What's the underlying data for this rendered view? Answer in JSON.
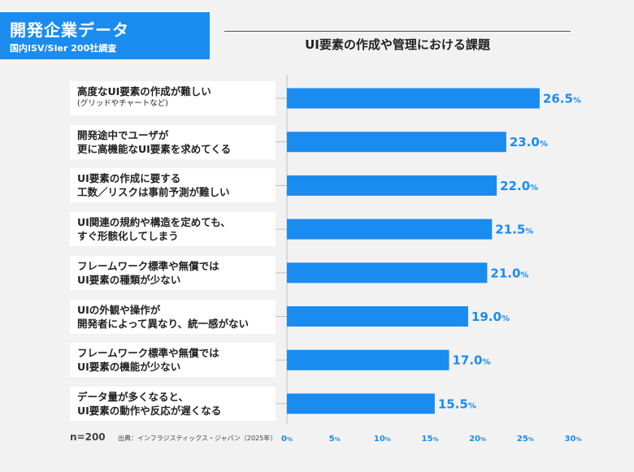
{
  "header": {
    "badge_title": "開発企業データ",
    "badge_subtitle": "国内ISV/SIer 200社調査",
    "chart_title": "UI要素の作成や管理における課題"
  },
  "chart_data": {
    "type": "bar",
    "orientation": "horizontal",
    "title": "UI要素の作成や管理における課題",
    "categories": [
      {
        "lines": [
          "高度なUI要素の作成が難しい"
        ],
        "note": "(グリッドやチャートなど)"
      },
      {
        "lines": [
          "開発途中でユーザが",
          "更に高機能なUI要素を求めてくる"
        ]
      },
      {
        "lines": [
          "UI要素の作成に要する",
          "工数／リスクは事前予測が難しい"
        ]
      },
      {
        "lines": [
          "UI関連の規約や構造を定めても、",
          "すぐ形骸化してしまう"
        ]
      },
      {
        "lines": [
          "フレームワーク標準や無償では",
          "UI要素の種類が少ない"
        ]
      },
      {
        "lines": [
          "UIの外観や操作が",
          "開発者によって異なり、統一感がない"
        ]
      },
      {
        "lines": [
          "フレームワーク標準や無償では",
          "UI要素の機能が少ない"
        ]
      },
      {
        "lines": [
          "データ量が多くなると、",
          "UI要素の動作や反応が遅くなる"
        ]
      }
    ],
    "values": [
      26.5,
      23.0,
      22.0,
      21.5,
      21.0,
      19.0,
      17.0,
      15.5
    ],
    "value_labels": [
      "26.5",
      "23.0",
      "22.0",
      "21.5",
      "21.0",
      "19.0",
      "17.0",
      "15.5"
    ],
    "unit": "%",
    "xlim": [
      0,
      30
    ],
    "xticks": [
      0,
      5,
      10,
      15,
      20,
      25,
      30
    ],
    "bar_color": "#1a8cf0",
    "grid": false
  },
  "footer": {
    "sample_size": "n=200",
    "source": "出典：インフラジスティックス・ジャパン（2025年）"
  }
}
